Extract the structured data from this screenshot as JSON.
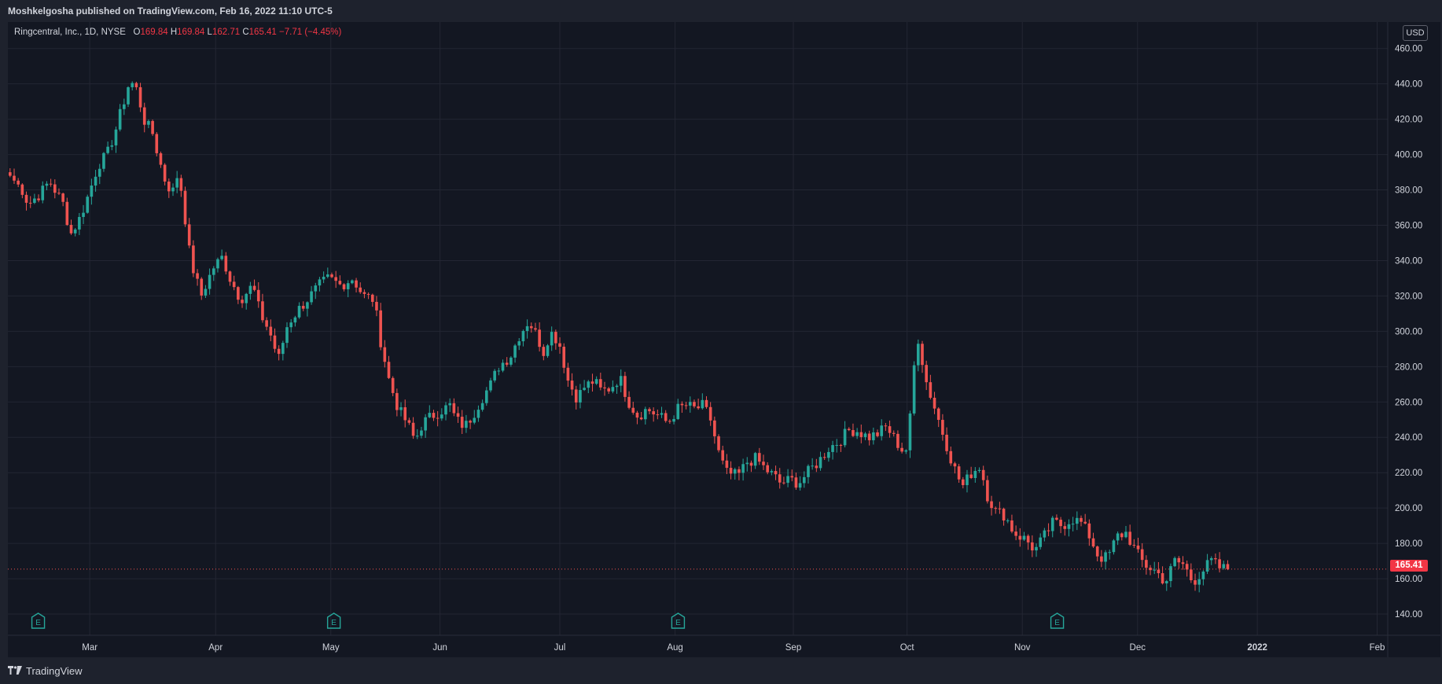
{
  "header": {
    "publisher": "Moshkelgosha published on TradingView.com, Feb 16, 2022 11:10 UTC-5"
  },
  "legend": {
    "symbol": "Ringcentral, Inc., 1D, NYSE",
    "o_label": "O",
    "open": "169.84",
    "h_label": "H",
    "high": "169.84",
    "l_label": "L",
    "low": "162.71",
    "c_label": "C",
    "close": "165.41",
    "change": "−7.71 (−4.45%)"
  },
  "currency": "USD",
  "last_price": "165.41",
  "footer": {
    "brand": "TradingView"
  },
  "colors": {
    "up": "#26a69a",
    "down": "#ef5350",
    "background": "#131722",
    "grid": "#232633",
    "earnings": "#26a69a",
    "earnings_upcoming": "#e040fb"
  },
  "chart_data": {
    "type": "candlestick",
    "timeframe": "1D",
    "ylim": [
      128,
      475
    ],
    "y_ticks": [
      140,
      160,
      180,
      200,
      220,
      240,
      260,
      280,
      300,
      320,
      340,
      360,
      380,
      400,
      420,
      440,
      460
    ],
    "y_tick_labels": [
      "140.00",
      "160.00",
      "180.00",
      "200.00",
      "220.00",
      "240.00",
      "260.00",
      "280.00",
      "300.00",
      "320.00",
      "340.00",
      "360.00",
      "380.00",
      "400.00",
      "420.00",
      "440.00",
      "460.00"
    ],
    "x_ticks": [
      {
        "label": "Feb",
        "t": -0.025
      },
      {
        "label": "Mar",
        "t": 0.054
      },
      {
        "label": "Apr",
        "t": 0.137
      },
      {
        "label": "May",
        "t": 0.213
      },
      {
        "label": "Jun",
        "t": 0.285
      },
      {
        "label": "Jul",
        "t": 0.364
      },
      {
        "label": "Aug",
        "t": 0.44
      },
      {
        "label": "Sep",
        "t": 0.518
      },
      {
        "label": "Oct",
        "t": 0.593
      },
      {
        "label": "Nov",
        "t": 0.669
      },
      {
        "label": "Dec",
        "t": 0.745
      },
      {
        "label": "2022",
        "t": 0.824,
        "bold": true
      },
      {
        "label": "Feb",
        "t": 0.903
      },
      {
        "label": "Mar",
        "t": 0.972
      }
    ],
    "earnings_markers": [
      {
        "label": "E",
        "t": 0.02,
        "type": "past"
      },
      {
        "label": "E",
        "t": 0.215,
        "type": "past"
      },
      {
        "label": "E",
        "t": 0.442,
        "type": "past"
      },
      {
        "label": "E",
        "t": 0.692,
        "type": "past"
      },
      {
        "label": "E",
        "t": 0.95,
        "type": "upcoming"
      }
    ],
    "anchors": [
      [
        0,
        388
      ],
      [
        0.008,
        380
      ],
      [
        0.012,
        372
      ],
      [
        0.02,
        378
      ],
      [
        0.026,
        385
      ],
      [
        0.035,
        372
      ],
      [
        0.04,
        355
      ],
      [
        0.046,
        364
      ],
      [
        0.052,
        378
      ],
      [
        0.058,
        394
      ],
      [
        0.064,
        400
      ],
      [
        0.07,
        415
      ],
      [
        0.075,
        430
      ],
      [
        0.079,
        442
      ],
      [
        0.084,
        436
      ],
      [
        0.088,
        420
      ],
      [
        0.094,
        412
      ],
      [
        0.098,
        398
      ],
      [
        0.102,
        386
      ],
      [
        0.107,
        378
      ],
      [
        0.11,
        388
      ],
      [
        0.113,
        380
      ],
      [
        0.119,
        340
      ],
      [
        0.126,
        320
      ],
      [
        0.134,
        336
      ],
      [
        0.14,
        342
      ],
      [
        0.145,
        330
      ],
      [
        0.152,
        318
      ],
      [
        0.16,
        326
      ],
      [
        0.165,
        310
      ],
      [
        0.171,
        300
      ],
      [
        0.177,
        284
      ],
      [
        0.183,
        304
      ],
      [
        0.19,
        312
      ],
      [
        0.196,
        318
      ],
      [
        0.204,
        326
      ],
      [
        0.21,
        330
      ],
      [
        0.218,
        326
      ],
      [
        0.226,
        330
      ],
      [
        0.233,
        320
      ],
      [
        0.24,
        318
      ],
      [
        0.244,
        296
      ],
      [
        0.25,
        272
      ],
      [
        0.256,
        256
      ],
      [
        0.262,
        248
      ],
      [
        0.267,
        238
      ],
      [
        0.272,
        248
      ],
      [
        0.278,
        252
      ],
      [
        0.284,
        255
      ],
      [
        0.29,
        258
      ],
      [
        0.294,
        250
      ],
      [
        0.3,
        246
      ],
      [
        0.306,
        254
      ],
      [
        0.311,
        262
      ],
      [
        0.317,
        270
      ],
      [
        0.322,
        280
      ],
      [
        0.33,
        286
      ],
      [
        0.336,
        298
      ],
      [
        0.342,
        306
      ],
      [
        0.347,
        298
      ],
      [
        0.352,
        288
      ],
      [
        0.356,
        300
      ],
      [
        0.362,
        294
      ],
      [
        0.368,
        272
      ],
      [
        0.374,
        262
      ],
      [
        0.378,
        268
      ],
      [
        0.385,
        272
      ],
      [
        0.39,
        266
      ],
      [
        0.396,
        268
      ],
      [
        0.402,
        274
      ],
      [
        0.408,
        260
      ],
      [
        0.414,
        252
      ],
      [
        0.42,
        256
      ],
      [
        0.428,
        252
      ],
      [
        0.434,
        248
      ],
      [
        0.44,
        256
      ],
      [
        0.446,
        258
      ],
      [
        0.452,
        256
      ],
      [
        0.457,
        258
      ],
      [
        0.462,
        250
      ],
      [
        0.467,
        232
      ],
      [
        0.472,
        220
      ],
      [
        0.48,
        218
      ],
      [
        0.486,
        226
      ],
      [
        0.492,
        228
      ],
      [
        0.498,
        222
      ],
      [
        0.504,
        218
      ],
      [
        0.508,
        214
      ],
      [
        0.515,
        216
      ],
      [
        0.52,
        214
      ],
      [
        0.528,
        222
      ],
      [
        0.533,
        226
      ],
      [
        0.54,
        234
      ],
      [
        0.547,
        238
      ],
      [
        0.553,
        244
      ],
      [
        0.558,
        244
      ],
      [
        0.566,
        240
      ],
      [
        0.572,
        242
      ],
      [
        0.578,
        246
      ],
      [
        0.584,
        238
      ],
      [
        0.589,
        232
      ],
      [
        0.592,
        234
      ],
      [
        0.598,
        300
      ],
      [
        0.604,
        272
      ],
      [
        0.61,
        256
      ],
      [
        0.616,
        240
      ],
      [
        0.622,
        224
      ],
      [
        0.628,
        212
      ],
      [
        0.634,
        220
      ],
      [
        0.64,
        224
      ],
      [
        0.644,
        208
      ],
      [
        0.65,
        198
      ],
      [
        0.656,
        196
      ],
      [
        0.662,
        186
      ],
      [
        0.67,
        182
      ],
      [
        0.676,
        176
      ],
      [
        0.682,
        184
      ],
      [
        0.688,
        192
      ],
      [
        0.694,
        190
      ],
      [
        0.7,
        194
      ],
      [
        0.706,
        192
      ],
      [
        0.712,
        184
      ],
      [
        0.718,
        172
      ],
      [
        0.724,
        172
      ],
      [
        0.73,
        184
      ],
      [
        0.736,
        186
      ],
      [
        0.742,
        176
      ],
      [
        0.748,
        168
      ],
      [
        0.756,
        164
      ],
      [
        0.762,
        158
      ],
      [
        0.768,
        170
      ],
      [
        0.774,
        168
      ],
      [
        0.78,
        158
      ],
      [
        0.786,
        164
      ],
      [
        0.792,
        170
      ],
      [
        0.798,
        166
      ],
      [
        0.803,
        165.41
      ]
    ]
  }
}
